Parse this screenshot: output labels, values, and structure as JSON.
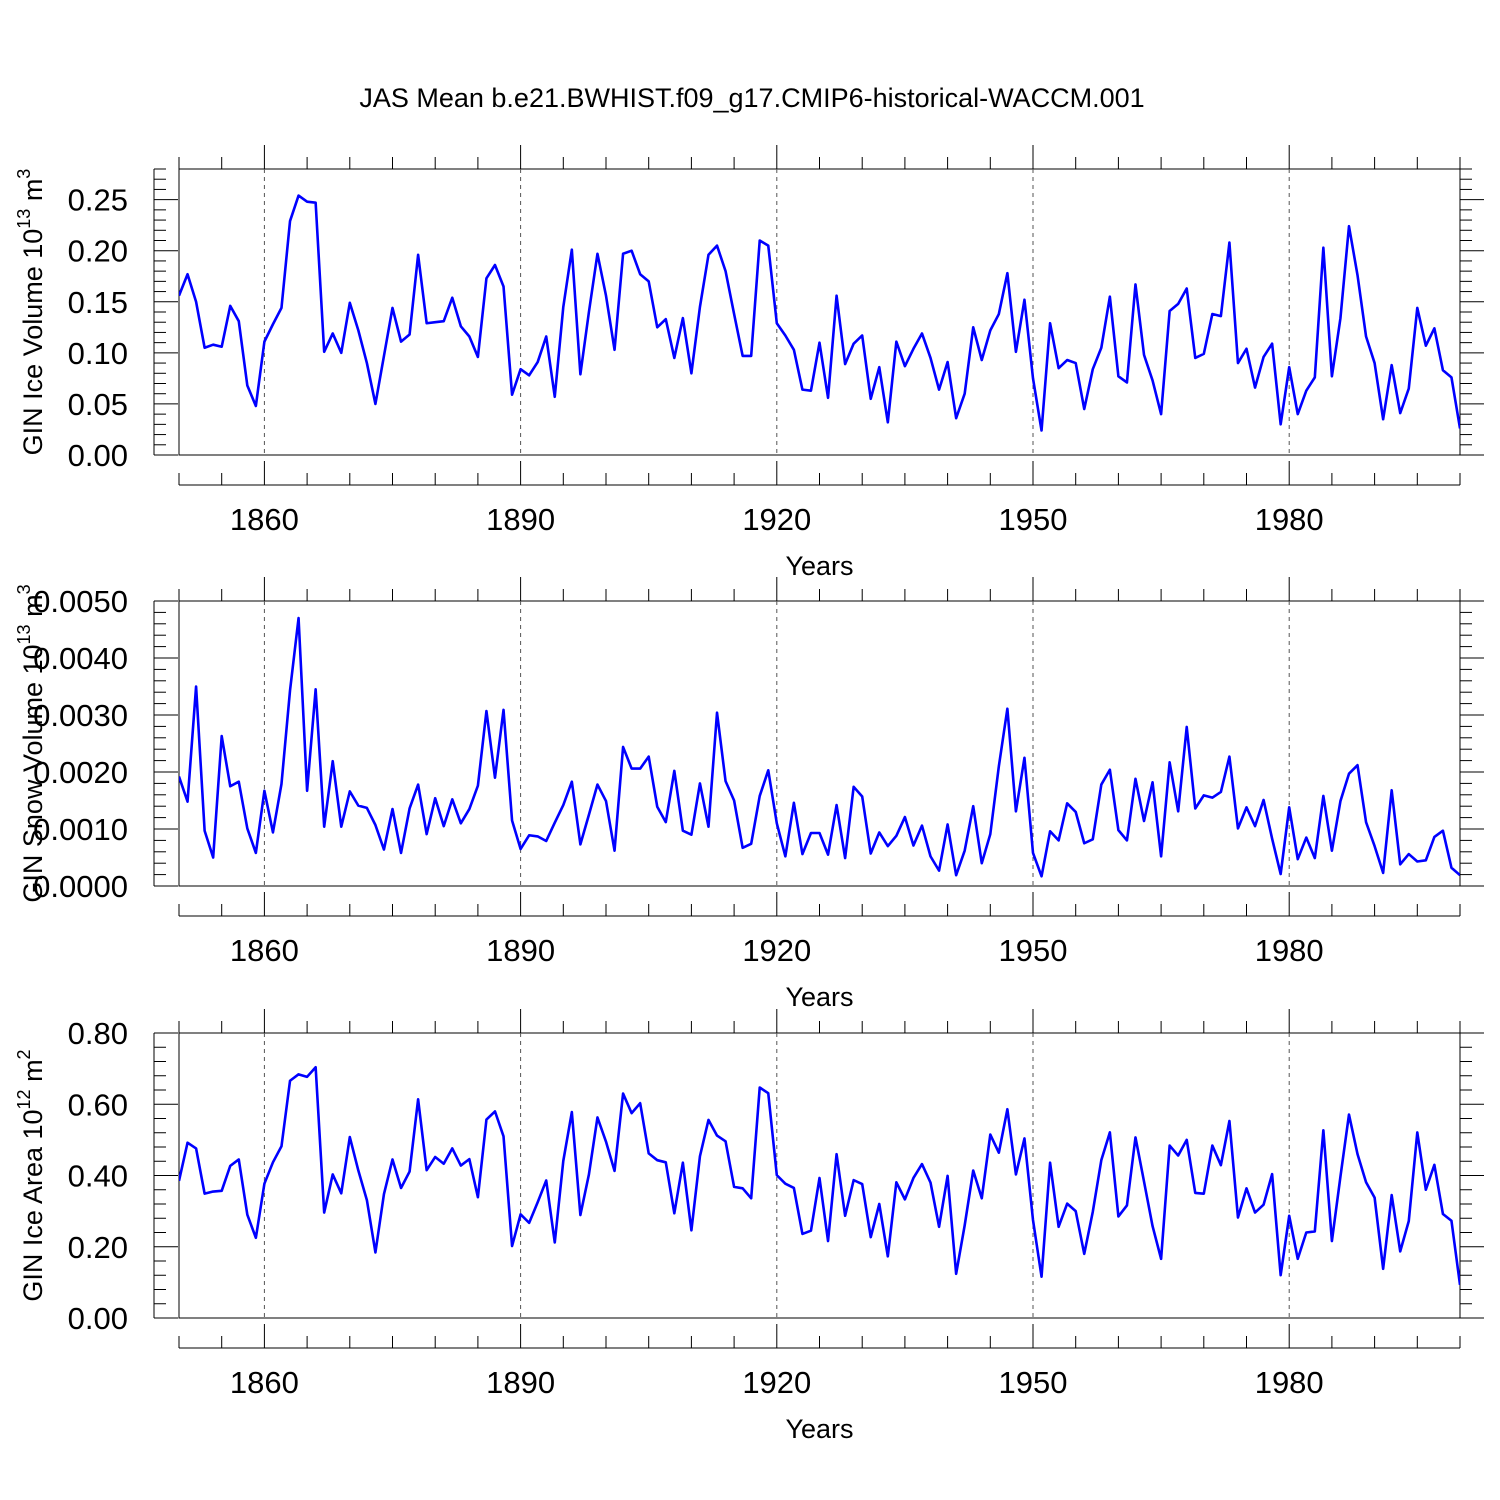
{
  "figure_title": "JAS Mean b.e21.BWHIST.f09_g17.CMIP6-historical-WACCM.001",
  "colors": {
    "line": "#0000ff",
    "axes": "#000000",
    "grid": "#555555",
    "background": "#ffffff"
  },
  "chart_data": [
    {
      "type": "line",
      "title": "",
      "xlabel": "Years",
      "ylabel_main": "GIN Ice Volume 10",
      "ylabel_exp": "13",
      "ylabel_unit": "m",
      "ylabel_unit_exp": "3",
      "xlim": [
        1850,
        2000
      ],
      "ylim": [
        0,
        0.28
      ],
      "xticks": [
        1860,
        1890,
        1920,
        1950,
        1980
      ],
      "xtick_labels": [
        "1860",
        "1890",
        "1920",
        "1950",
        "1980"
      ],
      "yticks": [
        0,
        0.05,
        0.1,
        0.15,
        0.2,
        0.25
      ],
      "ytick_labels": [
        "0.00",
        "0.05",
        "0.10",
        "0.15",
        "0.20",
        "0.25"
      ],
      "grid": "vertical dashed at major x ticks",
      "x_start": 1850,
      "values": [
        0.156,
        0.177,
        0.15,
        0.105,
        0.108,
        0.106,
        0.146,
        0.131,
        0.068,
        0.048,
        0.111,
        0.128,
        0.144,
        0.229,
        0.254,
        0.248,
        0.247,
        0.101,
        0.119,
        0.1,
        0.149,
        0.122,
        0.09,
        0.05,
        0.097,
        0.144,
        0.111,
        0.118,
        0.196,
        0.129,
        0.13,
        0.131,
        0.154,
        0.126,
        0.116,
        0.096,
        0.173,
        0.186,
        0.165,
        0.059,
        0.084,
        0.078,
        0.091,
        0.116,
        0.057,
        0.145,
        0.201,
        0.079,
        0.14,
        0.197,
        0.156,
        0.103,
        0.197,
        0.2,
        0.177,
        0.17,
        0.125,
        0.133,
        0.095,
        0.134,
        0.08,
        0.145,
        0.196,
        0.205,
        0.18,
        0.138,
        0.097,
        0.097,
        0.21,
        0.205,
        0.129,
        0.117,
        0.103,
        0.064,
        0.063,
        0.11,
        0.056,
        0.156,
        0.089,
        0.109,
        0.117,
        0.055,
        0.086,
        0.032,
        0.111,
        0.087,
        0.104,
        0.119,
        0.095,
        0.064,
        0.091,
        0.036,
        0.06,
        0.125,
        0.093,
        0.122,
        0.138,
        0.178,
        0.101,
        0.152,
        0.075,
        0.024,
        0.129,
        0.085,
        0.093,
        0.09,
        0.045,
        0.084,
        0.105,
        0.155,
        0.077,
        0.071,
        0.167,
        0.098,
        0.073,
        0.04,
        0.141,
        0.148,
        0.163,
        0.095,
        0.099,
        0.138,
        0.136,
        0.208,
        0.09,
        0.104,
        0.066,
        0.096,
        0.109,
        0.03,
        0.086,
        0.04,
        0.063,
        0.076,
        0.203,
        0.077,
        0.134,
        0.224,
        0.176,
        0.116,
        0.09,
        0.035,
        0.088,
        0.041,
        0.065,
        0.144,
        0.107,
        0.124,
        0.083,
        0.076,
        0.026
      ]
    },
    {
      "type": "line",
      "title": "",
      "xlabel": "Years",
      "ylabel_main": "GIN Snow Volume 10",
      "ylabel_exp": "13",
      "ylabel_unit": "m",
      "ylabel_unit_exp": "3",
      "xlim": [
        1850,
        2000
      ],
      "ylim": [
        0,
        0.005
      ],
      "xticks": [
        1860,
        1890,
        1920,
        1950,
        1980
      ],
      "xtick_labels": [
        "1860",
        "1890",
        "1920",
        "1950",
        "1980"
      ],
      "yticks": [
        0,
        0.001,
        0.002,
        0.003,
        0.004,
        0.005
      ],
      "ytick_labels": [
        "0.0000",
        "0.0010",
        "0.0020",
        "0.0030",
        "0.0040",
        "0.0050"
      ],
      "grid": "vertical dashed at major x ticks",
      "x_start": 1850,
      "values": [
        0.00192,
        0.00148,
        0.0035,
        0.00097,
        0.0005,
        0.00263,
        0.00175,
        0.00183,
        0.00101,
        0.00058,
        0.00167,
        0.00094,
        0.00179,
        0.00343,
        0.0047,
        0.00167,
        0.00345,
        0.00104,
        0.00219,
        0.00104,
        0.00166,
        0.00141,
        0.00137,
        0.00107,
        0.00064,
        0.00135,
        0.00058,
        0.00136,
        0.00178,
        0.00091,
        0.00154,
        0.00105,
        0.00152,
        0.0011,
        0.00135,
        0.00176,
        0.00307,
        0.0019,
        0.00309,
        0.00115,
        0.00065,
        0.00089,
        0.00087,
        0.00079,
        0.00111,
        0.00142,
        0.00183,
        0.00073,
        0.00125,
        0.00178,
        0.00149,
        0.00062,
        0.00244,
        0.00206,
        0.00206,
        0.00227,
        0.00139,
        0.00112,
        0.00202,
        0.00097,
        0.0009,
        0.0018,
        0.00104,
        0.00304,
        0.00184,
        0.0015,
        0.00067,
        0.00074,
        0.00158,
        0.00203,
        0.0011,
        0.00052,
        0.00146,
        0.00056,
        0.00093,
        0.00093,
        0.00055,
        0.00142,
        0.00049,
        0.00174,
        0.00157,
        0.00057,
        0.00094,
        0.0007,
        0.00088,
        0.00121,
        0.00071,
        0.00106,
        0.00052,
        0.00027,
        0.00108,
        0.00019,
        0.00062,
        0.0014,
        0.0004,
        0.00091,
        0.0021,
        0.00311,
        0.00131,
        0.00225,
        0.00058,
        0.00017,
        0.00096,
        0.0008,
        0.00145,
        0.0013,
        0.00075,
        0.00082,
        0.00178,
        0.00204,
        0.00098,
        0.0008,
        0.00188,
        0.00114,
        0.00182,
        0.00052,
        0.00217,
        0.00131,
        0.00279,
        0.00136,
        0.00159,
        0.00155,
        0.00165,
        0.00227,
        0.00101,
        0.00138,
        0.00105,
        0.00151,
        0.00083,
        0.00021,
        0.00138,
        0.00047,
        0.00085,
        0.00049,
        0.00158,
        0.00062,
        0.00149,
        0.00197,
        0.00212,
        0.00112,
        0.0007,
        0.00023,
        0.00168,
        0.00038,
        0.00056,
        0.00043,
        0.00045,
        0.00086,
        0.00097,
        0.00032,
        0.00019
      ]
    },
    {
      "type": "line",
      "title": "",
      "xlabel": "Years",
      "ylabel_main": "GIN Ice Area 10",
      "ylabel_exp": "12",
      "ylabel_unit": "m",
      "ylabel_unit_exp": "2",
      "xlim": [
        1850,
        2000
      ],
      "ylim": [
        0,
        0.8
      ],
      "xticks": [
        1860,
        1890,
        1920,
        1950,
        1980
      ],
      "xtick_labels": [
        "1860",
        "1890",
        "1920",
        "1950",
        "1980"
      ],
      "yticks": [
        0,
        0.2,
        0.4,
        0.6,
        0.8
      ],
      "ytick_labels": [
        "0.00",
        "0.20",
        "0.40",
        "0.60",
        "0.80"
      ],
      "grid": "vertical dashed at major x ticks",
      "x_start": 1850,
      "values": [
        0.385,
        0.492,
        0.476,
        0.349,
        0.355,
        0.357,
        0.427,
        0.445,
        0.29,
        0.225,
        0.377,
        0.437,
        0.482,
        0.666,
        0.684,
        0.677,
        0.704,
        0.296,
        0.403,
        0.35,
        0.508,
        0.414,
        0.331,
        0.184,
        0.348,
        0.445,
        0.365,
        0.411,
        0.614,
        0.415,
        0.452,
        0.433,
        0.476,
        0.428,
        0.446,
        0.339,
        0.557,
        0.58,
        0.51,
        0.202,
        0.291,
        0.267,
        0.325,
        0.386,
        0.212,
        0.441,
        0.578,
        0.289,
        0.403,
        0.563,
        0.495,
        0.413,
        0.63,
        0.575,
        0.603,
        0.462,
        0.443,
        0.437,
        0.294,
        0.436,
        0.246,
        0.454,
        0.556,
        0.512,
        0.496,
        0.368,
        0.364,
        0.336,
        0.647,
        0.631,
        0.401,
        0.377,
        0.365,
        0.236,
        0.245,
        0.393,
        0.216,
        0.46,
        0.287,
        0.387,
        0.376,
        0.227,
        0.32,
        0.173,
        0.381,
        0.333,
        0.393,
        0.432,
        0.38,
        0.256,
        0.399,
        0.124,
        0.26,
        0.414,
        0.336,
        0.515,
        0.464,
        0.586,
        0.403,
        0.504,
        0.275,
        0.116,
        0.436,
        0.256,
        0.321,
        0.3,
        0.18,
        0.298,
        0.443,
        0.521,
        0.285,
        0.316,
        0.507,
        0.383,
        0.258,
        0.166,
        0.484,
        0.456,
        0.5,
        0.351,
        0.349,
        0.484,
        0.429,
        0.553,
        0.282,
        0.364,
        0.296,
        0.318,
        0.404,
        0.12,
        0.287,
        0.166,
        0.24,
        0.243,
        0.527,
        0.216,
        0.397,
        0.571,
        0.46,
        0.381,
        0.338,
        0.138,
        0.345,
        0.187,
        0.272,
        0.521,
        0.36,
        0.43,
        0.292,
        0.273,
        0.093
      ]
    }
  ]
}
